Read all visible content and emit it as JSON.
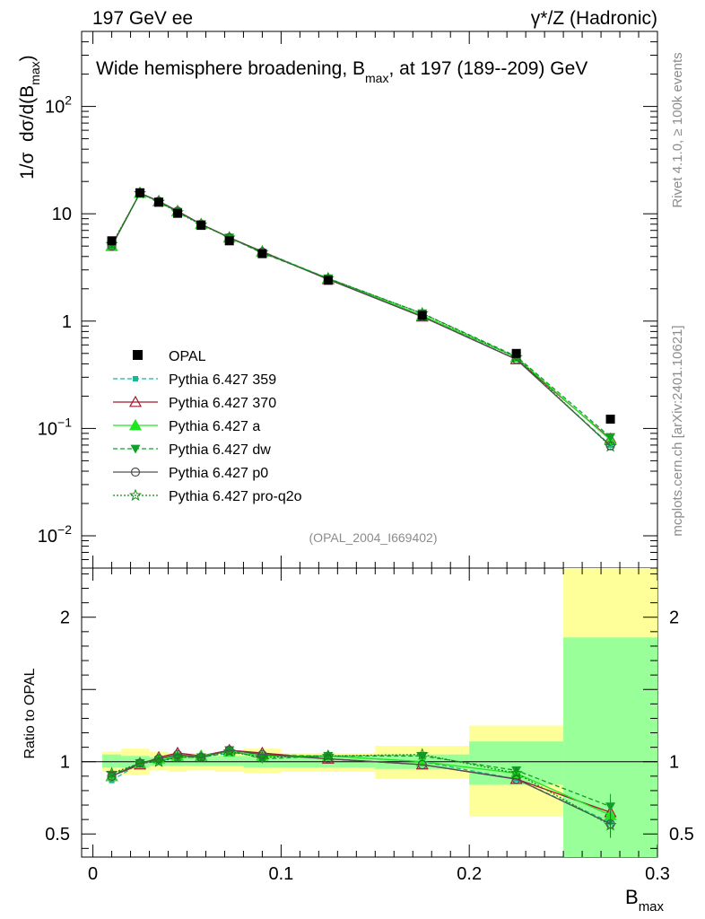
{
  "header": {
    "left": "197 GeV ee",
    "right": "γ*/Z (Hadronic)"
  },
  "side_labels": {
    "rivet": "Rivet 4.1.0, ≥ 100k events",
    "mcplots": "mcplots.cern.ch [arXiv:2401.10621]"
  },
  "chart_data": {
    "type": "line",
    "title": "Wide hemisphere broadening, B_max, at 197 (189--209) GeV",
    "title_main": "Wide hemisphere broadening, B",
    "title_sub": "max",
    "title_tail": ", at 197 (189--209) GeV",
    "analysis_id": "(OPAL_2004_I669402)",
    "xlabel": "B",
    "xlabel_sub": "max",
    "ylabel_prefix": "1/σ",
    "ylabel_main": "dσ/d(B",
    "ylabel_sub": "max",
    "ylabel_close": ")",
    "ratio_ylabel": "Ratio to OPAL",
    "xlim": [
      -0.006,
      0.3
    ],
    "ylim_log": [
      0.005,
      500
    ],
    "ratio_ylim": [
      0.34,
      2.34
    ],
    "x_ticks": [
      0,
      0.1,
      0.2,
      0.3
    ],
    "x_tick_labels": [
      "0",
      "0.1",
      "0.2",
      "0.3"
    ],
    "ratio_ticks": [
      0.5,
      1,
      2
    ],
    "ratio_tick_labels": [
      "0.5",
      "1",
      "2"
    ],
    "y_major_ticks": [
      {
        "value": 0.01,
        "base": "10",
        "exp": "−2"
      },
      {
        "value": 0.1,
        "base": "10",
        "exp": "−1"
      },
      {
        "value": 1,
        "base": "1",
        "exp": ""
      },
      {
        "value": 10,
        "base": "10",
        "exp": ""
      },
      {
        "value": 100,
        "base": "10",
        "exp": "2"
      }
    ],
    "x": [
      0.01,
      0.025,
      0.035,
      0.045,
      0.0575,
      0.0725,
      0.09,
      0.125,
      0.175,
      0.225,
      0.275
    ],
    "bin_edges": [
      0.005,
      0.015,
      0.03,
      0.04,
      0.05,
      0.065,
      0.08,
      0.1,
      0.15,
      0.2,
      0.25,
      0.3
    ],
    "opal": [
      5.6,
      15.7,
      12.8,
      10.1,
      7.8,
      5.6,
      4.25,
      2.4,
      1.13,
      0.5,
      0.122
    ],
    "ratio_band_stat": [
      [
        0.96,
        1.05
      ],
      [
        0.96,
        1.04
      ],
      [
        0.97,
        1.03
      ],
      [
        0.97,
        1.04
      ],
      [
        0.97,
        1.04
      ],
      [
        0.97,
        1.04
      ],
      [
        0.96,
        1.04
      ],
      [
        0.96,
        1.04
      ],
      [
        0.95,
        1.05
      ],
      [
        0.84,
        1.14
      ],
      [
        0.34,
        1.86
      ]
    ],
    "ratio_band_total": [
      [
        0.93,
        1.07
      ],
      [
        0.91,
        1.09
      ],
      [
        0.94,
        1.07
      ],
      [
        0.93,
        1.06
      ],
      [
        0.94,
        1.06
      ],
      [
        0.93,
        1.07
      ],
      [
        0.92,
        1.09
      ],
      [
        0.93,
        1.06
      ],
      [
        0.88,
        1.11
      ],
      [
        0.62,
        1.25
      ],
      [
        0.34,
        2.34
      ]
    ],
    "series": [
      {
        "name": "Pythia 6.427 359",
        "color": "#17b897",
        "dash": "5,3",
        "marker": "square",
        "values": [
          5.0,
          15.6,
          13.0,
          10.5,
          8.0,
          6.0,
          4.45,
          2.5,
          1.13,
          0.44,
          0.07
        ],
        "ratio": [
          0.87,
          0.99,
          1.0,
          1.04,
          1.03,
          1.06,
          1.05,
          1.04,
          1.0,
          0.88,
          0.58
        ]
      },
      {
        "name": "Pythia 6.427 370",
        "color": "#a0182f",
        "dash": "",
        "marker": "triangle-open",
        "values": [
          5.0,
          15.6,
          13.1,
          10.6,
          8.0,
          6.0,
          4.45,
          2.45,
          1.1,
          0.44,
          0.08
        ],
        "ratio": [
          0.9,
          0.98,
          1.03,
          1.06,
          1.04,
          1.08,
          1.06,
          1.02,
          0.98,
          0.88,
          0.65
        ]
      },
      {
        "name": "Pythia 6.427 a",
        "color": "#1ee61e",
        "dash": "",
        "marker": "triangle",
        "values": [
          5.0,
          15.6,
          13.0,
          10.5,
          8.0,
          6.0,
          4.4,
          2.5,
          1.13,
          0.46,
          0.078
        ],
        "ratio": [
          0.9,
          0.99,
          1.02,
          1.04,
          1.04,
          1.07,
          1.04,
          1.04,
          1.0,
          0.92,
          0.63
        ]
      },
      {
        "name": "Pythia 6.427 dw",
        "color": "#10a02a",
        "dash": "5,3",
        "marker": "triangle-down",
        "values": [
          5.1,
          15.6,
          13.0,
          10.4,
          8.0,
          6.0,
          4.3,
          2.5,
          1.18,
          0.47,
          0.083
        ],
        "ratio": [
          0.91,
          0.99,
          1.01,
          1.03,
          1.03,
          1.08,
          1.02,
          1.04,
          1.04,
          0.94,
          0.69
        ]
      },
      {
        "name": "Pythia 6.427 p0",
        "color": "#505050",
        "dash": "",
        "marker": "circle-open",
        "values": [
          5.0,
          15.6,
          13.1,
          10.6,
          8.0,
          6.0,
          4.4,
          2.45,
          1.1,
          0.44,
          0.069
        ],
        "ratio": [
          0.9,
          0.99,
          1.02,
          1.05,
          1.03,
          1.08,
          1.05,
          1.02,
          0.98,
          0.88,
          0.57
        ]
      },
      {
        "name": "Pythia 6.427 pro-q2o",
        "color": "#168a16",
        "dash": "2,2",
        "marker": "star",
        "values": [
          5.2,
          15.5,
          12.9,
          10.3,
          7.9,
          6.0,
          4.35,
          2.5,
          1.18,
          0.46,
          0.068
        ],
        "ratio": [
          0.92,
          0.99,
          1.0,
          1.03,
          1.03,
          1.07,
          1.03,
          1.04,
          1.05,
          0.92,
          0.56
        ]
      }
    ],
    "legend_opal": "OPAL",
    "legend_position": "bottom-left"
  }
}
